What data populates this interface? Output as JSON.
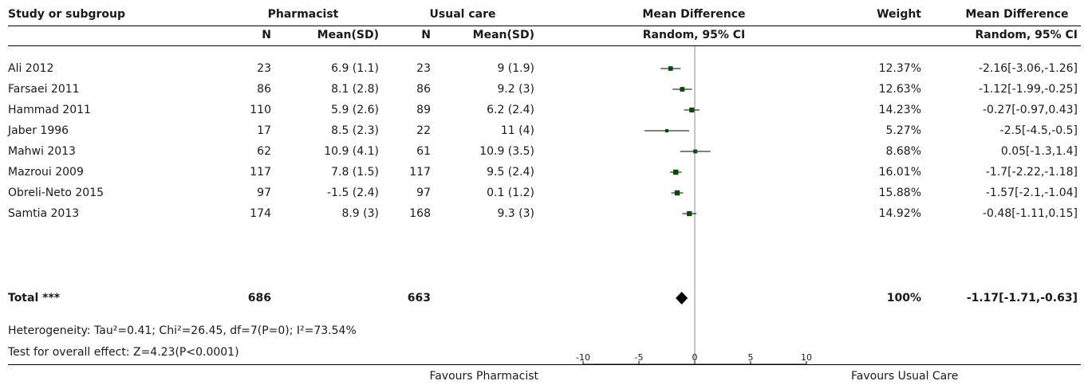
{
  "header": {
    "study_label": "Study or subgroup",
    "group1": "Pharmacist",
    "group2": "Usual care",
    "n": "N",
    "mean_sd": "Mean(SD)",
    "md_title": "Mean Difference",
    "md_sub": "Random, 95% CI",
    "weight": "Weight",
    "md_title2": "Mean Difference",
    "md_sub2": "Random, 95% CI"
  },
  "studies": [
    {
      "name": "Ali 2012",
      "n1": "23",
      "m1": "6.9 (1.1)",
      "n2": "23",
      "m2": "9 (1.9)",
      "weight": "12.37%",
      "ci_text": "-2.16[-3.06,-1.26]"
    },
    {
      "name": "Farsaei 2011",
      "n1": "86",
      "m1": "8.1 (2.8)",
      "n2": "86",
      "m2": "9.2 (3)",
      "weight": "12.63%",
      "ci_text": "-1.12[-1.99,-0.25]"
    },
    {
      "name": "Hammad 2011",
      "n1": "110",
      "m1": "5.9 (2.6)",
      "n2": "89",
      "m2": "6.2 (2.4)",
      "weight": "14.23%",
      "ci_text": "-0.27[-0.97,0.43]"
    },
    {
      "name": "Jaber 1996",
      "n1": "17",
      "m1": "8.5 (2.3)",
      "n2": "22",
      "m2": "11 (4)",
      "weight": "5.27%",
      "ci_text": "-2.5[-4.5,-0.5]"
    },
    {
      "name": "Mahwi 2013",
      "n1": "62",
      "m1": "10.9 (4.1)",
      "n2": "61",
      "m2": "10.9 (3.5)",
      "weight": "8.68%",
      "ci_text": "0.05[-1.3,1.4]"
    },
    {
      "name": "Mazroui 2009",
      "n1": "117",
      "m1": "7.8 (1.5)",
      "n2": "117",
      "m2": "9.5 (2.4)",
      "weight": "16.01%",
      "ci_text": "-1.7[-2.22,-1.18]"
    },
    {
      "name": "Obreli-Neto 2015",
      "n1": "97",
      "m1": "-1.5 (2.4)",
      "n2": "97",
      "m2": "0.1 (1.2)",
      "weight": "15.88%",
      "ci_text": "-1.57[-2.1,-1.04]"
    },
    {
      "name": "Samtia 2013",
      "n1": "174",
      "m1": "8.9 (3)",
      "n2": "168",
      "m2": "9.3 (3)",
      "weight": "14.92%",
      "ci_text": "-0.48[-1.11,0.15]"
    }
  ],
  "total": {
    "label": "Total ***",
    "n1": "686",
    "n2": "663",
    "weight": "100%",
    "ci_text": "-1.17[-1.71,-0.63]"
  },
  "heterogeneity": "Heterogeneity: Tau²=0.41; Chi²=26.45, df=7(P=0); I²=73.54%",
  "overall_effect": "Test for overall effect: Z=4.23(P<0.0001)",
  "favours_left": "Favours Pharmacist",
  "favours_right": "Favours Usual Care",
  "colors": {
    "marker": "#0b4a0b",
    "diamond": "#000000"
  },
  "chart_data": {
    "type": "forest",
    "xlim": [
      -10,
      10
    ],
    "ticks": [
      -10,
      -5,
      0,
      5,
      10
    ],
    "tick_labels": [
      "-10",
      "-5",
      "0",
      "5",
      "10"
    ],
    "xlabel_left": "Favours Pharmacist",
    "xlabel_right": "Favours Usual Care",
    "series": [
      {
        "study": "Ali 2012",
        "md": -2.16,
        "lo": -3.06,
        "hi": -1.26,
        "weight": 12.37
      },
      {
        "study": "Farsaei 2011",
        "md": -1.12,
        "lo": -1.99,
        "hi": -0.25,
        "weight": 12.63
      },
      {
        "study": "Hammad 2011",
        "md": -0.27,
        "lo": -0.97,
        "hi": 0.43,
        "weight": 14.23
      },
      {
        "study": "Jaber 1996",
        "md": -2.5,
        "lo": -4.5,
        "hi": -0.5,
        "weight": 5.27
      },
      {
        "study": "Mahwi 2013",
        "md": 0.05,
        "lo": -1.3,
        "hi": 1.4,
        "weight": 8.68
      },
      {
        "study": "Mazroui 2009",
        "md": -1.7,
        "lo": -2.22,
        "hi": -1.18,
        "weight": 16.01
      },
      {
        "study": "Obreli-Neto 2015",
        "md": -1.57,
        "lo": -2.1,
        "hi": -1.04,
        "weight": 15.88
      },
      {
        "study": "Samtia 2013",
        "md": -0.48,
        "lo": -1.11,
        "hi": 0.15,
        "weight": 14.92
      }
    ],
    "pooled": {
      "md": -1.17,
      "lo": -1.71,
      "hi": -0.63,
      "weight": 100
    }
  }
}
